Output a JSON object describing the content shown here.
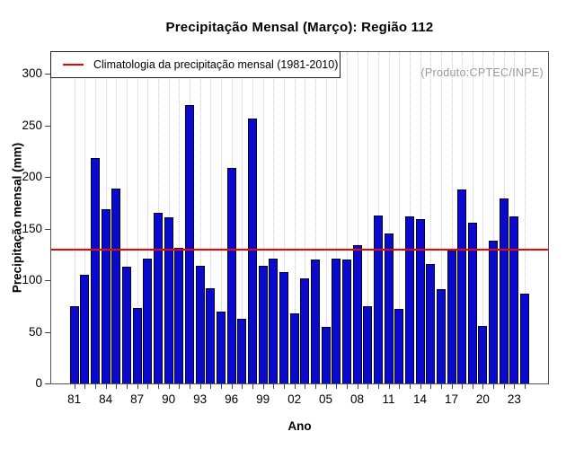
{
  "title": "Precipitação Mensal (Março): Região 112",
  "annotation": "(Produto:CPTEC/INPE)",
  "legend": {
    "label": "Climatologia da precipitação mensal (1981-2010)"
  },
  "chart_data": {
    "type": "bar",
    "title": "Precipitação Mensal (Março): Região 112",
    "xlabel": "Ano",
    "ylabel": "Precipitação mensal (mm)",
    "years": [
      1981,
      1982,
      1983,
      1984,
      1985,
      1986,
      1987,
      1988,
      1989,
      1990,
      1991,
      1992,
      1993,
      1994,
      1995,
      1996,
      1997,
      1998,
      1999,
      2000,
      2001,
      2002,
      2003,
      2004,
      2005,
      2006,
      2007,
      2008,
      2009,
      2010,
      2011,
      2012,
      2013,
      2014,
      2015,
      2016,
      2017,
      2018,
      2019,
      2020,
      2021,
      2022,
      2023,
      2024
    ],
    "values": [
      75,
      105,
      218,
      169,
      189,
      113,
      73,
      121,
      165,
      161,
      131,
      270,
      114,
      92,
      70,
      209,
      63,
      257,
      114,
      121,
      108,
      68,
      102,
      120,
      55,
      121,
      120,
      134,
      75,
      163,
      145,
      72,
      162,
      159,
      116,
      91,
      129,
      188,
      156,
      56,
      138,
      179,
      162,
      87
    ],
    "climatology_value": 130,
    "x_tick_years": [
      1981,
      1984,
      1987,
      1990,
      1993,
      1996,
      1999,
      2002,
      2005,
      2008,
      2011,
      2014,
      2017,
      2020,
      2023
    ],
    "x_tick_labels": [
      "81",
      "84",
      "87",
      "90",
      "93",
      "96",
      "99",
      "02",
      "05",
      "08",
      "11",
      "14",
      "17",
      "20",
      "23"
    ],
    "y_ticks": [
      0,
      50,
      100,
      150,
      200,
      250,
      300
    ],
    "y_tick_labels": [
      "0",
      "50",
      "100",
      "150",
      "200",
      "250",
      "300"
    ],
    "ylim": [
      0,
      321
    ],
    "grid": "vertical dotted per year",
    "legend_position": "top-left",
    "colors": {
      "bar_fill": "#0a0ace",
      "bar_border": "#000020",
      "climatology_line": "#f80000",
      "grid_line": "#cccccc",
      "frame": "#555555",
      "annotation_text": "#999999"
    }
  }
}
